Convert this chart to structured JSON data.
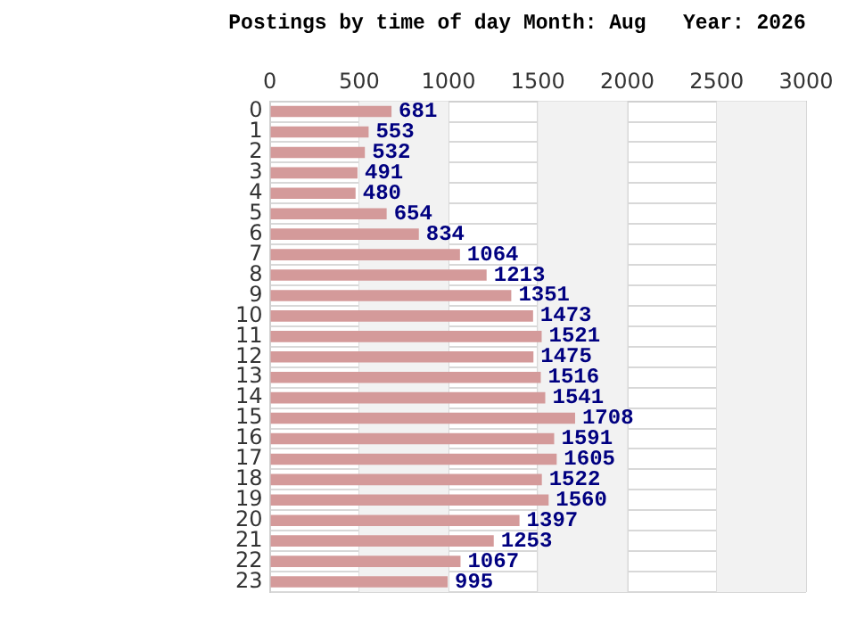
{
  "chart_data": {
    "type": "bar",
    "orientation": "horizontal",
    "title": "Postings by time of day Month: Aug   Year: 2026",
    "categories": [
      "0",
      "1",
      "2",
      "3",
      "4",
      "5",
      "6",
      "7",
      "8",
      "9",
      "10",
      "11",
      "12",
      "13",
      "14",
      "15",
      "16",
      "17",
      "18",
      "19",
      "20",
      "21",
      "22",
      "23"
    ],
    "series": [
      {
        "color": "#d49a9a",
        "values": [
          681,
          553,
          532,
          491,
          480,
          654,
          834,
          1064,
          1213,
          1351,
          1473,
          1521,
          1475,
          1516,
          1541,
          1708,
          1591,
          1605,
          1522,
          1560,
          1397,
          1253,
          1067,
          995
        ]
      }
    ],
    "xlim": [
      0,
      3000
    ],
    "xticks": [
      0,
      500,
      1000,
      1500,
      2000,
      2500,
      3000
    ],
    "bands": [
      {
        "axis": "x",
        "from": 500,
        "to": 1000,
        "color": "#f2f2f2"
      },
      {
        "axis": "x",
        "from": 1500,
        "to": 2000,
        "color": "#f2f2f2"
      },
      {
        "axis": "x",
        "from": 2500,
        "to": 3000,
        "color": "#f2f2f2"
      }
    ],
    "grid": true,
    "data_labels": true,
    "legend": false
  }
}
